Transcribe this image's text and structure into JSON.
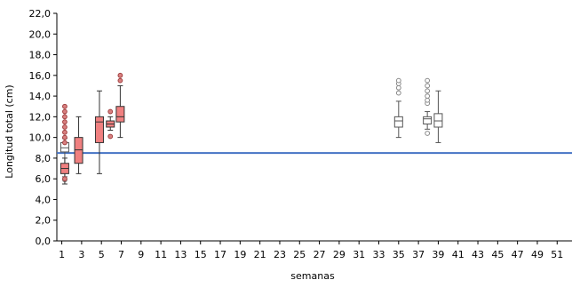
{
  "chart_data": {
    "type": "boxplot",
    "xlabel": "semanas",
    "ylabel": "Longitud total (cm)",
    "xlim": [
      0.5,
      52.5
    ],
    "ylim": [
      0,
      22
    ],
    "yticks": [
      0,
      2,
      4,
      6,
      8,
      10,
      12,
      14,
      16,
      18,
      20,
      22
    ],
    "ytick_labels": [
      "0,0",
      "2,0",
      "4,0",
      "6,0",
      "8,0",
      "10,0",
      "12,0",
      "14,0",
      "16,0",
      "18,0",
      "20,0",
      "22,0"
    ],
    "xticks": [
      1,
      3,
      5,
      7,
      9,
      11,
      13,
      15,
      17,
      19,
      21,
      23,
      25,
      27,
      29,
      31,
      33,
      35,
      37,
      39,
      41,
      43,
      45,
      47,
      49,
      51
    ],
    "xtick_labels": [
      "1",
      "3",
      "5",
      "7",
      "9",
      "11",
      "13",
      "15",
      "17",
      "19",
      "21",
      "23",
      "25",
      "27",
      "29",
      "31",
      "33",
      "35",
      "37",
      "39",
      "41",
      "43",
      "45",
      "47",
      "49",
      "51"
    ],
    "grid": false,
    "reference_line": {
      "y_start": 8.5,
      "y_end": 8.5,
      "color": "#4472c4"
    },
    "series": [
      {
        "fill": "#ffffff",
        "stroke": "#555555",
        "boxes": [
          {
            "x": 1.3,
            "min": 6.2,
            "q1": 8.6,
            "median": 9.0,
            "q3": 9.5,
            "max": 9.9,
            "outliers": [
              5.9
            ]
          },
          {
            "x": 35.0,
            "min": 10.0,
            "q1": 11.0,
            "median": 11.6,
            "q3": 12.0,
            "max": 13.5,
            "outliers": [
              14.3,
              14.8,
              15.2,
              15.5
            ]
          },
          {
            "x": 37.9,
            "min": 10.8,
            "q1": 11.3,
            "median": 11.8,
            "q3": 12.0,
            "max": 12.5,
            "outliers": [
              10.4,
              13.3,
              13.6,
              14.0,
              14.5,
              15.0,
              15.5
            ]
          },
          {
            "x": 39.0,
            "min": 9.5,
            "q1": 11.0,
            "median": 11.6,
            "q3": 12.3,
            "max": 14.5,
            "outliers": []
          }
        ]
      },
      {
        "fill": "#f08080",
        "stroke": "#333333",
        "boxes": [
          {
            "x": 1.3,
            "min": 5.5,
            "q1": 6.5,
            "median": 7.0,
            "q3": 7.5,
            "max": 8.0,
            "outliers": [
              6.0,
              9.5,
              10.0,
              10.5,
              11.0,
              11.5,
              12.0,
              12.5,
              13.0
            ]
          },
          {
            "x": 2.7,
            "min": 6.5,
            "q1": 7.5,
            "median": 8.8,
            "q3": 10.0,
            "max": 12.0,
            "outliers": []
          },
          {
            "x": 4.8,
            "min": 6.5,
            "q1": 9.5,
            "median": 11.5,
            "q3": 12.0,
            "max": 14.5,
            "outliers": []
          },
          {
            "x": 5.9,
            "min": 10.7,
            "q1": 11.0,
            "median": 11.3,
            "q3": 11.6,
            "max": 12.0,
            "outliers": [
              10.1,
              12.5
            ]
          },
          {
            "x": 6.9,
            "min": 10.0,
            "q1": 11.5,
            "median": 12.0,
            "q3": 13.0,
            "max": 15.0,
            "outliers": [
              15.5,
              16.0
            ]
          }
        ]
      }
    ]
  }
}
